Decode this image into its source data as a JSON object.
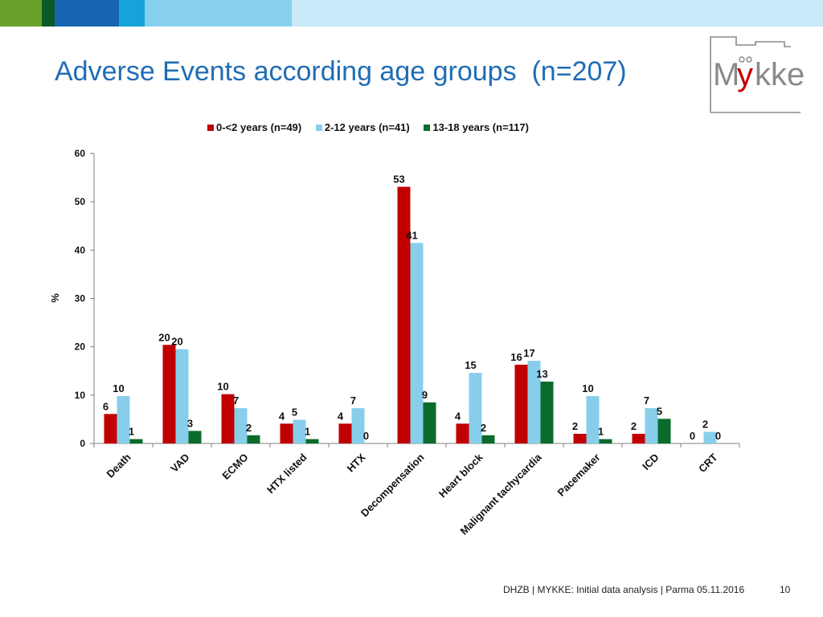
{
  "header": {
    "colors": [
      "#6aa12a",
      "#0b5a2a",
      "#1565b0",
      "#16a3dc",
      "#86d0ee",
      "#c8e9f8"
    ]
  },
  "title": {
    "main": "Adverse Events according age groups",
    "n_label": "(n=207)"
  },
  "logo": {
    "icon": "mykke-logo-icon",
    "text": "MYKKE"
  },
  "chart_data": {
    "type": "bar",
    "title": "",
    "xlabel": "",
    "ylabel": "%",
    "ylim": [
      0,
      60
    ],
    "yticks": [
      0,
      10,
      20,
      30,
      40,
      50,
      60
    ],
    "legend_position": "top-center",
    "grid": false,
    "categories": [
      "Death",
      "VAD",
      "ECMO",
      "HTX listed",
      "HTX",
      "Decompensation",
      "Heart block",
      "Malignant tachycardia",
      "Pacemaker",
      "ICD",
      "CRT"
    ],
    "series": [
      {
        "name": "0-<2 years (n=49)",
        "color": "#c00000",
        "values": [
          6.1,
          20.4,
          10.2,
          4.1,
          4.1,
          53.1,
          4.1,
          16.3,
          2.0,
          2.0,
          0
        ],
        "labels": [
          "6",
          "20",
          "10",
          "4",
          "4",
          "53",
          "4",
          "16",
          "2",
          "2",
          "0"
        ]
      },
      {
        "name": "2-12 years (n=41)",
        "color": "#87ceeb",
        "values": [
          9.8,
          19.5,
          7.3,
          4.9,
          7.3,
          41.5,
          14.6,
          17.1,
          9.8,
          7.3,
          2.4
        ],
        "labels": [
          "10",
          "20",
          "7",
          "5",
          "7",
          "41",
          "15",
          "17",
          "10",
          "7",
          "2"
        ]
      },
      {
        "name": "13-18 years (n=117)",
        "color": "#0b6b2a",
        "values": [
          0.9,
          2.6,
          1.7,
          0.9,
          0,
          8.5,
          1.7,
          12.8,
          0.9,
          5.1,
          0
        ],
        "labels": [
          "1",
          "3",
          "2",
          "1",
          "0",
          "9",
          "2",
          "13",
          "1",
          "5",
          "0"
        ]
      }
    ]
  },
  "footer": {
    "text": "DHZB | MYKKE: Initial data analysis | Parma 05.11.2016",
    "page": "10"
  }
}
